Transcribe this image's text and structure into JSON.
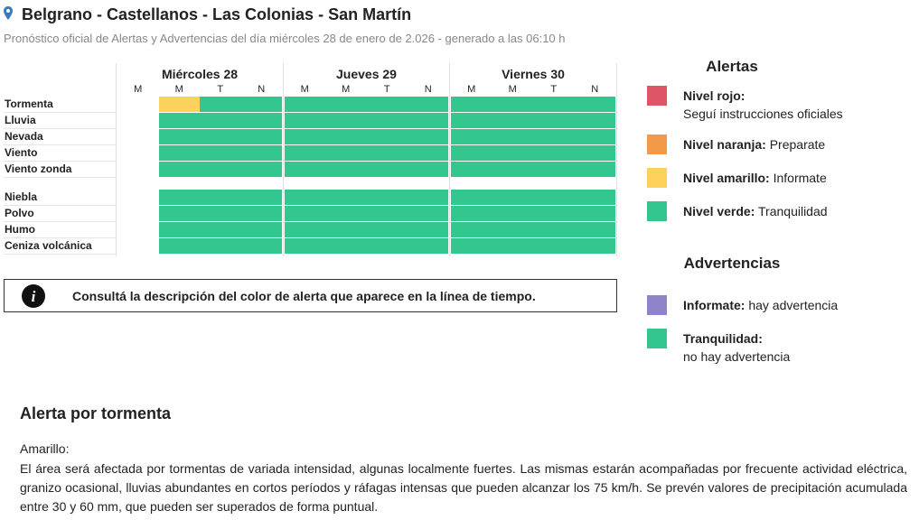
{
  "header": {
    "title": "Belgrano - Castellanos - Las Colonias - San Martín",
    "subtitle": "Pronóstico oficial de Alertas y Advertencias del día miércoles 28 de enero de 2.026 - generado a las 06:10 h"
  },
  "timeline": {
    "days": [
      {
        "name": "Miércoles 28",
        "periods": [
          "M",
          "M",
          "T",
          "N"
        ]
      },
      {
        "name": "Jueves 29",
        "periods": [
          "M",
          "M",
          "T",
          "N"
        ]
      },
      {
        "name": "Viernes 30",
        "periods": [
          "M",
          "M",
          "T",
          "N"
        ]
      }
    ],
    "groups": [
      [
        {
          "name": "Tormenta",
          "cells": [
            null,
            "#fdd25c",
            "#33c68e",
            "#33c68e",
            "#33c68e",
            "#33c68e",
            "#33c68e",
            "#33c68e",
            "#33c68e",
            "#33c68e",
            "#33c68e",
            "#33c68e"
          ]
        },
        {
          "name": "Lluvia",
          "cells": [
            null,
            "#33c68e",
            "#33c68e",
            "#33c68e",
            "#33c68e",
            "#33c68e",
            "#33c68e",
            "#33c68e",
            "#33c68e",
            "#33c68e",
            "#33c68e",
            "#33c68e"
          ]
        },
        {
          "name": "Nevada",
          "cells": [
            null,
            "#33c68e",
            "#33c68e",
            "#33c68e",
            "#33c68e",
            "#33c68e",
            "#33c68e",
            "#33c68e",
            "#33c68e",
            "#33c68e",
            "#33c68e",
            "#33c68e"
          ]
        },
        {
          "name": "Viento",
          "cells": [
            null,
            "#33c68e",
            "#33c68e",
            "#33c68e",
            "#33c68e",
            "#33c68e",
            "#33c68e",
            "#33c68e",
            "#33c68e",
            "#33c68e",
            "#33c68e",
            "#33c68e"
          ]
        },
        {
          "name": "Viento zonda",
          "cells": [
            null,
            "#33c68e",
            "#33c68e",
            "#33c68e",
            "#33c68e",
            "#33c68e",
            "#33c68e",
            "#33c68e",
            "#33c68e",
            "#33c68e",
            "#33c68e",
            "#33c68e"
          ]
        }
      ],
      [
        {
          "name": "Niebla",
          "cells": [
            null,
            "#33c68e",
            "#33c68e",
            "#33c68e",
            "#33c68e",
            "#33c68e",
            "#33c68e",
            "#33c68e",
            "#33c68e",
            "#33c68e",
            "#33c68e",
            "#33c68e"
          ]
        },
        {
          "name": "Polvo",
          "cells": [
            null,
            "#33c68e",
            "#33c68e",
            "#33c68e",
            "#33c68e",
            "#33c68e",
            "#33c68e",
            "#33c68e",
            "#33c68e",
            "#33c68e",
            "#33c68e",
            "#33c68e"
          ]
        },
        {
          "name": "Humo",
          "cells": [
            null,
            "#33c68e",
            "#33c68e",
            "#33c68e",
            "#33c68e",
            "#33c68e",
            "#33c68e",
            "#33c68e",
            "#33c68e",
            "#33c68e",
            "#33c68e",
            "#33c68e"
          ]
        },
        {
          "name": "Ceniza volcánica",
          "cells": [
            null,
            "#33c68e",
            "#33c68e",
            "#33c68e",
            "#33c68e",
            "#33c68e",
            "#33c68e",
            "#33c68e",
            "#33c68e",
            "#33c68e",
            "#33c68e",
            "#33c68e"
          ]
        }
      ]
    ]
  },
  "info": "Consultá la descripción del color de alerta que aparece en la línea de tiempo.",
  "legend": {
    "alertas": {
      "title": "Alertas",
      "items": [
        {
          "label": "Nivel rojo:",
          "text": "Seguí instrucciones oficiales",
          "color": "#e05468"
        },
        {
          "label": "Nivel naranja:",
          "text": "Preparate",
          "color": "#f2994a"
        },
        {
          "label": "Nivel amarillo:",
          "text": "Informate",
          "color": "#fdd25c"
        },
        {
          "label": "Nivel verde:",
          "text": "Tranquilidad",
          "color": "#33c68e"
        }
      ]
    },
    "advertencias": {
      "title": "Advertencias",
      "items": [
        {
          "label": "Informate:",
          "text": "hay advertencia",
          "color": "#8f84c9"
        },
        {
          "label": "Tranquilidad:",
          "text": "no hay advertencia",
          "color": "#33c68e"
        }
      ]
    }
  },
  "description": {
    "title": "Alerta por tormenta",
    "level": "Amarillo:",
    "text": "El área será afectada por tormentas de variada intensidad, algunas localmente fuertes. Las mismas estarán acompañadas por frecuente actividad eléctrica, granizo ocasional, lluvias abundantes en cortos períodos y ráfagas intensas que pueden alcanzar los 75 km/h. Se prevén valores de precipitación acumulada entre 30 y 60 mm, que pueden ser superados de forma puntual."
  }
}
